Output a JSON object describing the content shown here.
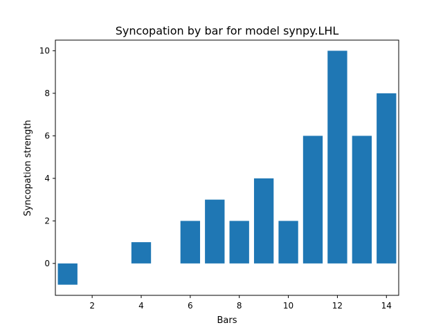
{
  "chart_data": {
    "type": "bar",
    "title": "Syncopation by bar for model synpy.LHL",
    "xlabel": "Bars",
    "ylabel": "Syncopation strength",
    "x": [
      1,
      2,
      3,
      4,
      5,
      6,
      7,
      8,
      9,
      10,
      11,
      12,
      13,
      14
    ],
    "values": [
      -1,
      0,
      0,
      1,
      0,
      2,
      3,
      2,
      4,
      2,
      6,
      10,
      6,
      8
    ],
    "xlim": [
      0.5,
      14.5
    ],
    "ylim": [
      -1.5,
      10.5
    ],
    "xticks": [
      2,
      4,
      6,
      8,
      10,
      12,
      14
    ],
    "yticks": [
      0,
      2,
      4,
      6,
      8,
      10
    ],
    "bar_width": 0.8,
    "bar_color": "#1f77b4",
    "grid": false,
    "legend": "none"
  }
}
